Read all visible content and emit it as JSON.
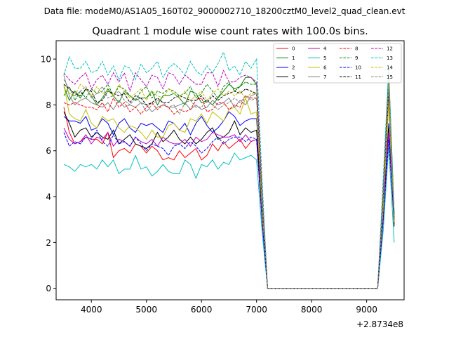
{
  "chart_data": {
    "type": "line",
    "suptitle": "Data file: modeM0/AS1A05_160T02_9000002710_18200cztM0_level2_quad_clean.evt",
    "title": "Quadrant 1 module wise count rates with 100.0s bins.",
    "xlabel": "",
    "ylabel": "",
    "x_offset_label": "+2.8734e8",
    "xlim": [
      3360,
      9680
    ],
    "ylim": [
      -0.5,
      10.8
    ],
    "x_ticks": [
      4000,
      5000,
      6000,
      7000,
      8000,
      9000
    ],
    "y_ticks": [
      0,
      2,
      4,
      6,
      8,
      10
    ],
    "grid": false,
    "legend_position": "top-right",
    "x": [
      3500,
      3600,
      3700,
      3800,
      3900,
      4000,
      4100,
      4200,
      4300,
      4400,
      4500,
      4600,
      4700,
      4800,
      4900,
      5000,
      5100,
      5200,
      5300,
      5400,
      5500,
      5600,
      5700,
      5800,
      5900,
      6000,
      6100,
      6200,
      6300,
      6400,
      6500,
      6600,
      6700,
      6800,
      6900,
      7000,
      7100,
      7200,
      7300,
      7400,
      7500,
      7600,
      7700,
      7800,
      7900,
      8000,
      8100,
      8200,
      8300,
      8400,
      8500,
      8600,
      8700,
      8800,
      8900,
      9000,
      9100,
      9200,
      9300,
      9400,
      9500
    ],
    "series": [
      {
        "name": "0",
        "color": "#ff0000",
        "dash": false,
        "values": [
          7.9,
          6.8,
          6.3,
          6.4,
          6.6,
          6.5,
          6.5,
          6.3,
          6.8,
          5.7,
          6.0,
          6.1,
          5.9,
          6.3,
          6.2,
          5.9,
          6.2,
          6.0,
          5.6,
          5.7,
          5.6,
          6.0,
          5.7,
          5.9,
          6.1,
          5.6,
          5.8,
          6.3,
          6.0,
          6.4,
          6.1,
          6.3,
          6.5,
          6.1,
          6.4,
          6.5,
          3.0,
          0.0,
          0.0,
          0.0,
          0.0,
          0.0,
          0.0,
          0.0,
          0.0,
          0.0,
          0.0,
          0.0,
          0.0,
          0.0,
          0.0,
          0.0,
          0.0,
          0.0,
          0.0,
          0.0,
          0.0,
          0.0,
          3.0,
          8.5,
          2.8
        ]
      },
      {
        "name": "1",
        "color": "#008000",
        "dash": false,
        "values": [
          8.8,
          8.2,
          8.6,
          8.3,
          8.7,
          8.4,
          8.0,
          8.3,
          8.7,
          8.4,
          8.1,
          8.6,
          8.4,
          8.2,
          8.3,
          8.3,
          8.6,
          8.0,
          8.4,
          8.4,
          8.5,
          8.3,
          8.0,
          8.6,
          8.5,
          8.1,
          8.2,
          8.0,
          8.3,
          8.6,
          8.9,
          8.7,
          8.8,
          9.2,
          9.2,
          8.9,
          4.0,
          0.0,
          0.0,
          0.0,
          0.0,
          0.0,
          0.0,
          0.0,
          0.0,
          0.0,
          0.0,
          0.0,
          0.0,
          0.0,
          0.0,
          0.0,
          0.0,
          0.0,
          0.0,
          0.0,
          0.0,
          0.0,
          4.0,
          9.5,
          3.2
        ]
      },
      {
        "name": "2",
        "color": "#0000ff",
        "dash": false,
        "values": [
          7.5,
          7.3,
          7.3,
          7.2,
          7.5,
          6.9,
          7.0,
          7.4,
          7.2,
          6.7,
          7.2,
          7.4,
          7.0,
          6.8,
          7.2,
          7.1,
          7.2,
          7.0,
          6.8,
          7.3,
          7.2,
          6.9,
          7.2,
          6.7,
          7.2,
          7.5,
          7.1,
          6.8,
          7.0,
          7.3,
          7.7,
          7.5,
          7.1,
          7.3,
          7.4,
          7.4,
          3.5,
          0.0,
          0.0,
          0.0,
          0.0,
          0.0,
          0.0,
          0.0,
          0.0,
          0.0,
          0.0,
          0.0,
          0.0,
          0.0,
          0.0,
          0.0,
          0.0,
          0.0,
          0.0,
          0.0,
          0.0,
          0.0,
          3.3,
          7.2,
          2.9
        ]
      },
      {
        "name": "3",
        "color": "#000000",
        "dash": false,
        "values": [
          7.7,
          7.2,
          6.6,
          6.9,
          7.0,
          6.6,
          6.8,
          6.6,
          6.5,
          6.9,
          6.3,
          6.5,
          6.7,
          6.3,
          6.2,
          6.1,
          6.3,
          6.8,
          6.4,
          6.6,
          6.9,
          6.5,
          6.3,
          6.6,
          6.3,
          6.5,
          6.8,
          7.0,
          6.5,
          6.6,
          6.8,
          7.3,
          6.7,
          7.0,
          6.8,
          6.9,
          3.3,
          0.0,
          0.0,
          0.0,
          0.0,
          0.0,
          0.0,
          0.0,
          0.0,
          0.0,
          0.0,
          0.0,
          0.0,
          0.0,
          0.0,
          0.0,
          0.0,
          0.0,
          0.0,
          0.0,
          0.0,
          0.0,
          3.0,
          7.0,
          2.7
        ]
      },
      {
        "name": "4",
        "color": "#bf00bf",
        "dash": false,
        "values": [
          7.0,
          6.5,
          6.3,
          6.4,
          6.7,
          6.3,
          6.6,
          6.5,
          6.8,
          6.2,
          6.5,
          6.4,
          6.2,
          6.6,
          6.4,
          6.3,
          6.5,
          6.2,
          6.6,
          6.4,
          6.3,
          6.3,
          6.5,
          6.2,
          6.6,
          6.4,
          6.5,
          6.8,
          6.7,
          6.6,
          6.6,
          6.7,
          6.4,
          6.7,
          6.4,
          6.5,
          3.0,
          0.0,
          0.0,
          0.0,
          0.0,
          0.0,
          0.0,
          0.0,
          0.0,
          0.0,
          0.0,
          0.0,
          0.0,
          0.0,
          0.0,
          0.0,
          0.0,
          0.0,
          0.0,
          0.0,
          0.0,
          0.0,
          3.0,
          6.8,
          3.0
        ]
      },
      {
        "name": "5",
        "color": "#00bfbf",
        "dash": false,
        "values": [
          5.4,
          5.3,
          5.1,
          5.4,
          5.3,
          5.4,
          5.2,
          5.6,
          5.3,
          5.6,
          5.0,
          5.2,
          5.2,
          5.8,
          5.2,
          5.3,
          4.9,
          5.1,
          5.4,
          5.1,
          5.0,
          5.0,
          5.6,
          5.4,
          4.8,
          5.4,
          5.3,
          5.6,
          5.2,
          5.5,
          5.4,
          5.9,
          5.6,
          5.7,
          5.8,
          5.6,
          2.5,
          0.0,
          0.0,
          0.0,
          0.0,
          0.0,
          0.0,
          0.0,
          0.0,
          0.0,
          0.0,
          0.0,
          0.0,
          0.0,
          0.0,
          0.0,
          0.0,
          0.0,
          0.0,
          0.0,
          0.0,
          0.0,
          2.5,
          6.2,
          2.0
        ]
      },
      {
        "name": "6",
        "color": "#bfbf00",
        "dash": false,
        "values": [
          8.9,
          7.6,
          7.4,
          7.3,
          7.8,
          7.2,
          7.0,
          7.5,
          7.3,
          7.4,
          7.0,
          6.8,
          7.1,
          7.0,
          6.8,
          6.5,
          6.9,
          6.6,
          6.6,
          7.1,
          7.2,
          6.9,
          6.8,
          7.4,
          7.3,
          7.6,
          7.2,
          7.7,
          7.5,
          7.3,
          7.8,
          7.9,
          7.6,
          8.3,
          7.6,
          7.7,
          3.5,
          0.0,
          0.0,
          0.0,
          0.0,
          0.0,
          0.0,
          0.0,
          0.0,
          0.0,
          0.0,
          0.0,
          0.0,
          0.0,
          0.0,
          0.0,
          0.0,
          0.0,
          0.0,
          0.0,
          0.0,
          0.0,
          3.5,
          8.0,
          2.9
        ]
      },
      {
        "name": "7",
        "color": "#808080",
        "dash": false,
        "values": [
          9.3,
          8.4,
          8.0,
          8.2,
          8.3,
          8.1,
          8.0,
          7.9,
          8.1,
          7.8,
          8.2,
          7.9,
          8.0,
          7.9,
          8.1,
          8.0,
          7.7,
          7.9,
          8.0,
          7.9,
          7.9,
          8.0,
          8.1,
          7.8,
          8.0,
          7.8,
          7.9,
          8.2,
          8.0,
          8.1,
          8.3,
          7.9,
          8.2,
          8.0,
          8.4,
          8.5,
          4.0,
          0.0,
          0.0,
          0.0,
          0.0,
          0.0,
          0.0,
          0.0,
          0.0,
          0.0,
          0.0,
          0.0,
          0.0,
          0.0,
          0.0,
          0.0,
          0.0,
          0.0,
          0.0,
          0.0,
          0.0,
          0.0,
          4.0,
          8.8,
          3.0
        ]
      },
      {
        "name": "8",
        "color": "#ff0000",
        "dash": true,
        "values": [
          8.1,
          8.0,
          8.1,
          8.0,
          7.9,
          7.9,
          7.8,
          8.1,
          7.7,
          8.3,
          7.9,
          8.1,
          7.7,
          7.9,
          7.6,
          7.9,
          8.1,
          7.8,
          8.0,
          7.9,
          7.6,
          7.8,
          7.7,
          7.8,
          8.2,
          8.3,
          7.7,
          7.8,
          8.1,
          8.1,
          7.8,
          8.0,
          7.9,
          8.4,
          8.3,
          8.3,
          4.0,
          0.0,
          0.0,
          0.0,
          0.0,
          0.0,
          0.0,
          0.0,
          0.0,
          0.0,
          0.0,
          0.0,
          0.0,
          0.0,
          0.0,
          0.0,
          0.0,
          0.0,
          0.0,
          0.0,
          0.0,
          0.0,
          4.0,
          8.6,
          3.0
        ]
      },
      {
        "name": "9",
        "color": "#008000",
        "dash": true,
        "values": [
          8.4,
          8.8,
          8.2,
          8.6,
          8.3,
          8.7,
          8.5,
          8.6,
          8.9,
          8.4,
          8.8,
          8.7,
          8.4,
          8.2,
          8.6,
          8.8,
          8.3,
          8.6,
          8.5,
          8.7,
          8.6,
          8.4,
          8.5,
          8.8,
          8.3,
          8.5,
          8.9,
          8.6,
          8.3,
          8.8,
          9.0,
          8.6,
          8.8,
          9.0,
          8.9,
          8.9,
          4.0,
          0.0,
          0.0,
          0.0,
          0.0,
          0.0,
          0.0,
          0.0,
          0.0,
          0.0,
          0.0,
          0.0,
          0.0,
          0.0,
          0.0,
          0.0,
          0.0,
          0.0,
          0.0,
          0.0,
          0.0,
          0.0,
          4.0,
          9.2,
          3.2
        ]
      },
      {
        "name": "10",
        "color": "#0000ff",
        "dash": true,
        "values": [
          6.8,
          6.2,
          6.4,
          6.3,
          6.6,
          6.5,
          6.9,
          6.4,
          6.2,
          6.7,
          6.3,
          6.4,
          6.2,
          6.6,
          6.3,
          6.0,
          6.3,
          6.2,
          6.1,
          5.8,
          6.2,
          6.3,
          6.1,
          6.4,
          6.2,
          5.9,
          6.1,
          6.4,
          6.6,
          6.3,
          6.5,
          6.6,
          6.6,
          6.4,
          6.6,
          6.5,
          3.0,
          0.0,
          0.0,
          0.0,
          0.0,
          0.0,
          0.0,
          0.0,
          0.0,
          0.0,
          0.0,
          0.0,
          0.0,
          0.0,
          0.0,
          0.0,
          0.0,
          0.0,
          0.0,
          0.0,
          0.0,
          0.0,
          3.0,
          6.5,
          3.0
        ]
      },
      {
        "name": "11",
        "color": "#000000",
        "dash": true,
        "values": [
          8.9,
          8.7,
          8.5,
          8.4,
          8.7,
          8.6,
          8.1,
          8.2,
          8.6,
          8.5,
          8.4,
          8.5,
          8.1,
          8.4,
          8.3,
          8.0,
          8.1,
          8.3,
          8.1,
          8.1,
          8.3,
          8.4,
          8.3,
          8.2,
          8.2,
          8.4,
          8.1,
          8.4,
          8.2,
          8.4,
          8.5,
          8.6,
          8.5,
          8.7,
          8.6,
          8.5,
          4.0,
          0.0,
          0.0,
          0.0,
          0.0,
          0.0,
          0.0,
          0.0,
          0.0,
          0.0,
          0.0,
          0.0,
          0.0,
          0.0,
          0.0,
          0.0,
          0.0,
          0.0,
          0.0,
          0.0,
          0.0,
          0.0,
          4.0,
          8.7,
          3.0
        ]
      },
      {
        "name": "12",
        "color": "#bf00bf",
        "dash": true,
        "values": [
          9.4,
          9.1,
          8.9,
          9.2,
          9.4,
          8.7,
          9.1,
          9.3,
          8.9,
          9.4,
          9.0,
          9.4,
          8.6,
          9.4,
          9.1,
          8.8,
          9.3,
          9.2,
          8.7,
          9.4,
          9.3,
          8.9,
          9.3,
          9.1,
          8.9,
          8.9,
          9.4,
          9.4,
          8.8,
          9.5,
          9.0,
          9.0,
          9.2,
          9.3,
          9.2,
          9.0,
          4.5,
          0.0,
          0.0,
          0.0,
          0.0,
          0.0,
          0.0,
          0.0,
          0.0,
          0.0,
          0.0,
          0.0,
          0.0,
          0.0,
          0.0,
          0.0,
          0.0,
          0.0,
          0.0,
          0.0,
          0.0,
          0.0,
          4.5,
          9.3,
          3.2
        ]
      },
      {
        "name": "13",
        "color": "#00bfbf",
        "dash": true,
        "values": [
          9.3,
          10.1,
          9.6,
          9.6,
          9.9,
          9.4,
          9.5,
          9.9,
          9.3,
          9.7,
          9.1,
          9.7,
          9.6,
          9.1,
          9.8,
          9.4,
          9.6,
          9.9,
          9.2,
          9.6,
          9.8,
          9.6,
          9.3,
          9.9,
          9.5,
          9.3,
          9.7,
          9.4,
          9.8,
          10.3,
          9.5,
          9.7,
          9.3,
          9.9,
          9.6,
          10.0,
          4.8,
          0.0,
          0.0,
          0.0,
          0.0,
          0.0,
          0.0,
          0.0,
          0.0,
          0.0,
          0.0,
          0.0,
          0.0,
          0.0,
          0.0,
          0.0,
          0.0,
          0.0,
          0.0,
          0.0,
          0.0,
          0.0,
          4.8,
          9.6,
          3.3
        ]
      },
      {
        "name": "14",
        "color": "#bfbf00",
        "dash": true,
        "values": [
          8.8,
          8.5,
          8.4,
          8.9,
          8.7,
          8.4,
          8.8,
          8.5,
          8.6,
          8.4,
          8.9,
          8.6,
          8.3,
          8.5,
          8.7,
          8.2,
          8.6,
          8.4,
          8.3,
          8.7,
          8.5,
          8.3,
          8.6,
          8.2,
          8.4,
          8.6,
          8.2,
          8.5,
          8.7,
          8.4,
          8.6,
          8.4,
          8.6,
          8.3,
          8.5,
          8.5,
          4.0,
          0.0,
          0.0,
          0.0,
          0.0,
          0.0,
          0.0,
          0.0,
          0.0,
          0.0,
          0.0,
          0.0,
          0.0,
          0.0,
          0.0,
          0.0,
          0.0,
          0.0,
          0.0,
          0.0,
          0.0,
          0.0,
          4.0,
          8.9,
          3.0
        ]
      },
      {
        "name": "15",
        "color": "#808080",
        "dash": true,
        "values": [
          9.1,
          8.7,
          8.4,
          8.6,
          8.8,
          8.3,
          8.5,
          8.8,
          8.3,
          8.4,
          8.6,
          8.2,
          8.0,
          8.3,
          8.1,
          7.7,
          8.0,
          8.2,
          8.1,
          7.9,
          8.0,
          7.6,
          8.1,
          8.2,
          7.9,
          7.9,
          8.2,
          8.0,
          7.8,
          8.0,
          8.1,
          8.3,
          8.1,
          8.4,
          8.2,
          8.3,
          4.0,
          0.0,
          0.0,
          0.0,
          0.0,
          0.0,
          0.0,
          0.0,
          0.0,
          0.0,
          0.0,
          0.0,
          0.0,
          0.0,
          0.0,
          0.0,
          0.0,
          0.0,
          0.0,
          0.0,
          0.0,
          0.0,
          4.0,
          8.7,
          3.0
        ]
      }
    ]
  }
}
